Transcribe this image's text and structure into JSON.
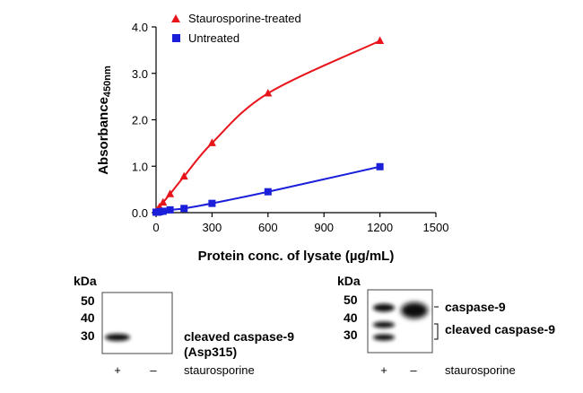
{
  "chart_data": {
    "type": "line",
    "xlabel": "Protein conc. of lysate (µg/mL)",
    "ylabel_main": "Absorbance",
    "ylabel_sub": "450nm",
    "xlim": [
      0,
      1500
    ],
    "ylim": [
      0,
      4.0
    ],
    "xticks": [
      0,
      300,
      600,
      900,
      1200,
      1500
    ],
    "yticks": [
      "0.0",
      "1.0",
      "2.0",
      "3.0",
      "4.0"
    ],
    "legend_position": "top-left",
    "series": [
      {
        "name": "Staurosporine-treated",
        "color": "#e8141b",
        "marker": "triangle",
        "x": [
          0,
          9.4,
          18.75,
          37.5,
          75,
          150,
          300,
          600,
          1200
        ],
        "y": [
          0.02,
          0.06,
          0.12,
          0.22,
          0.4,
          0.78,
          1.5,
          2.57,
          3.7
        ]
      },
      {
        "name": "Untreated",
        "color": "#1b1fd9",
        "marker": "square",
        "x": [
          0,
          9.4,
          18.75,
          37.5,
          75,
          150,
          300,
          600,
          1200
        ],
        "y": [
          0.01,
          0.01,
          0.02,
          0.03,
          0.06,
          0.09,
          0.2,
          0.45,
          0.99
        ]
      }
    ]
  },
  "blots": {
    "left": {
      "kda_label": "kDa",
      "markers": [
        "50",
        "40",
        "30"
      ],
      "band_label_line1": "cleaved caspase-9",
      "band_label_line2": "(Asp315)",
      "lanes": [
        "+",
        "–"
      ],
      "lane_caption": "staurosporine"
    },
    "right": {
      "kda_label": "kDa",
      "markers": [
        "50",
        "40",
        "30"
      ],
      "band_label_top": "caspase-9",
      "band_label_bottom": "cleaved caspase-9",
      "lanes": [
        "+",
        "–"
      ],
      "lane_caption": "staurosporine"
    }
  }
}
